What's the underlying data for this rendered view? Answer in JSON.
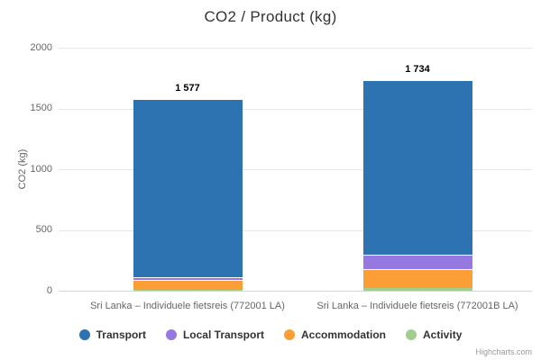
{
  "chart_data": {
    "type": "bar",
    "stacked": true,
    "title": "CO2 / Product (kg)",
    "ylabel": "CO2 (kg)",
    "xlabel": "",
    "ylim": [
      0,
      2000
    ],
    "yticks": [
      0,
      500,
      1000,
      1500,
      2000
    ],
    "categories": [
      "Sri Lanka – Individuele fietsreis (772001 LA)",
      "Sri Lanka – Individuele fietsreis (772001B LA)"
    ],
    "series": [
      {
        "name": "Transport",
        "color": "#2d72b1",
        "values": [
          1468,
          1440
        ]
      },
      {
        "name": "Local Transport",
        "color": "#9679e0",
        "values": [
          20,
          118
        ]
      },
      {
        "name": "Accommodation",
        "color": "#fb9e35",
        "values": [
          78,
          152
        ]
      },
      {
        "name": "Activity",
        "color": "#a3cd8d",
        "values": [
          11,
          24
        ]
      }
    ],
    "stack_totals": [
      "1 577",
      "1 734"
    ],
    "legend_position": "bottom",
    "grid": true,
    "credits": "Highcharts.com"
  }
}
